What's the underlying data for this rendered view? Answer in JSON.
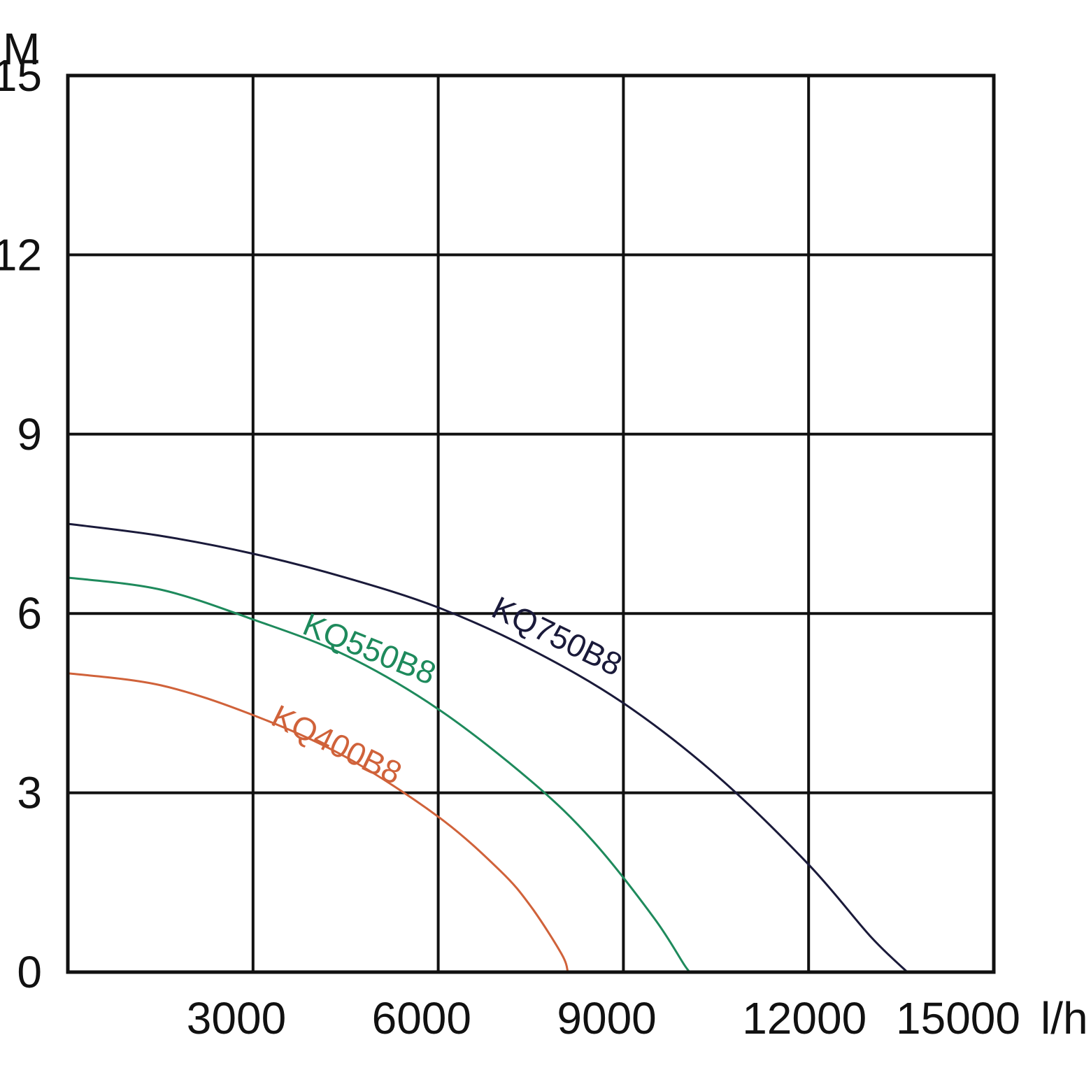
{
  "chart_data": {
    "type": "line",
    "title": "",
    "xlabel": "l/h",
    "ylabel": "M",
    "xlim": [
      0,
      15000
    ],
    "ylim": [
      0,
      15
    ],
    "grid": true,
    "x_ticks": [
      {
        "value": 3000,
        "label": "3000"
      },
      {
        "value": 6000,
        "label": "6000"
      },
      {
        "value": 9000,
        "label": "9000"
      },
      {
        "value": 12000,
        "label": "12000"
      },
      {
        "value": 15000,
        "label": "15000"
      }
    ],
    "y_ticks": [
      {
        "value": 0,
        "label": "0"
      },
      {
        "value": 3,
        "label": "3"
      },
      {
        "value": 6,
        "label": "6"
      },
      {
        "value": 9,
        "label": "9"
      },
      {
        "value": 12,
        "label": "12"
      },
      {
        "value": 15,
        "label": "15"
      }
    ],
    "series": [
      {
        "name": "KQ750B8",
        "color": "#1a1a3a",
        "x": [
          0,
          1500,
          3000,
          4500,
          6000,
          7500,
          9000,
          10500,
          12000,
          13000,
          13600
        ],
        "y": [
          7.5,
          7.3,
          7.0,
          6.6,
          6.1,
          5.4,
          4.5,
          3.3,
          1.8,
          0.6,
          0
        ]
      },
      {
        "name": "KQ550B8",
        "color": "#1e8a5c",
        "x": [
          0,
          1500,
          3000,
          4500,
          6000,
          7500,
          8500,
          9500,
          10000,
          10100
        ],
        "y": [
          6.6,
          6.4,
          5.9,
          5.3,
          4.4,
          3.2,
          2.2,
          0.9,
          0.1,
          0
        ]
      },
      {
        "name": "KQ400B8",
        "color": "#d0623a",
        "x": [
          0,
          1500,
          3000,
          4500,
          6000,
          7000,
          7500,
          8000,
          8100
        ],
        "y": [
          5.0,
          4.8,
          4.3,
          3.6,
          2.6,
          1.7,
          1.1,
          0.3,
          0
        ]
      }
    ]
  }
}
